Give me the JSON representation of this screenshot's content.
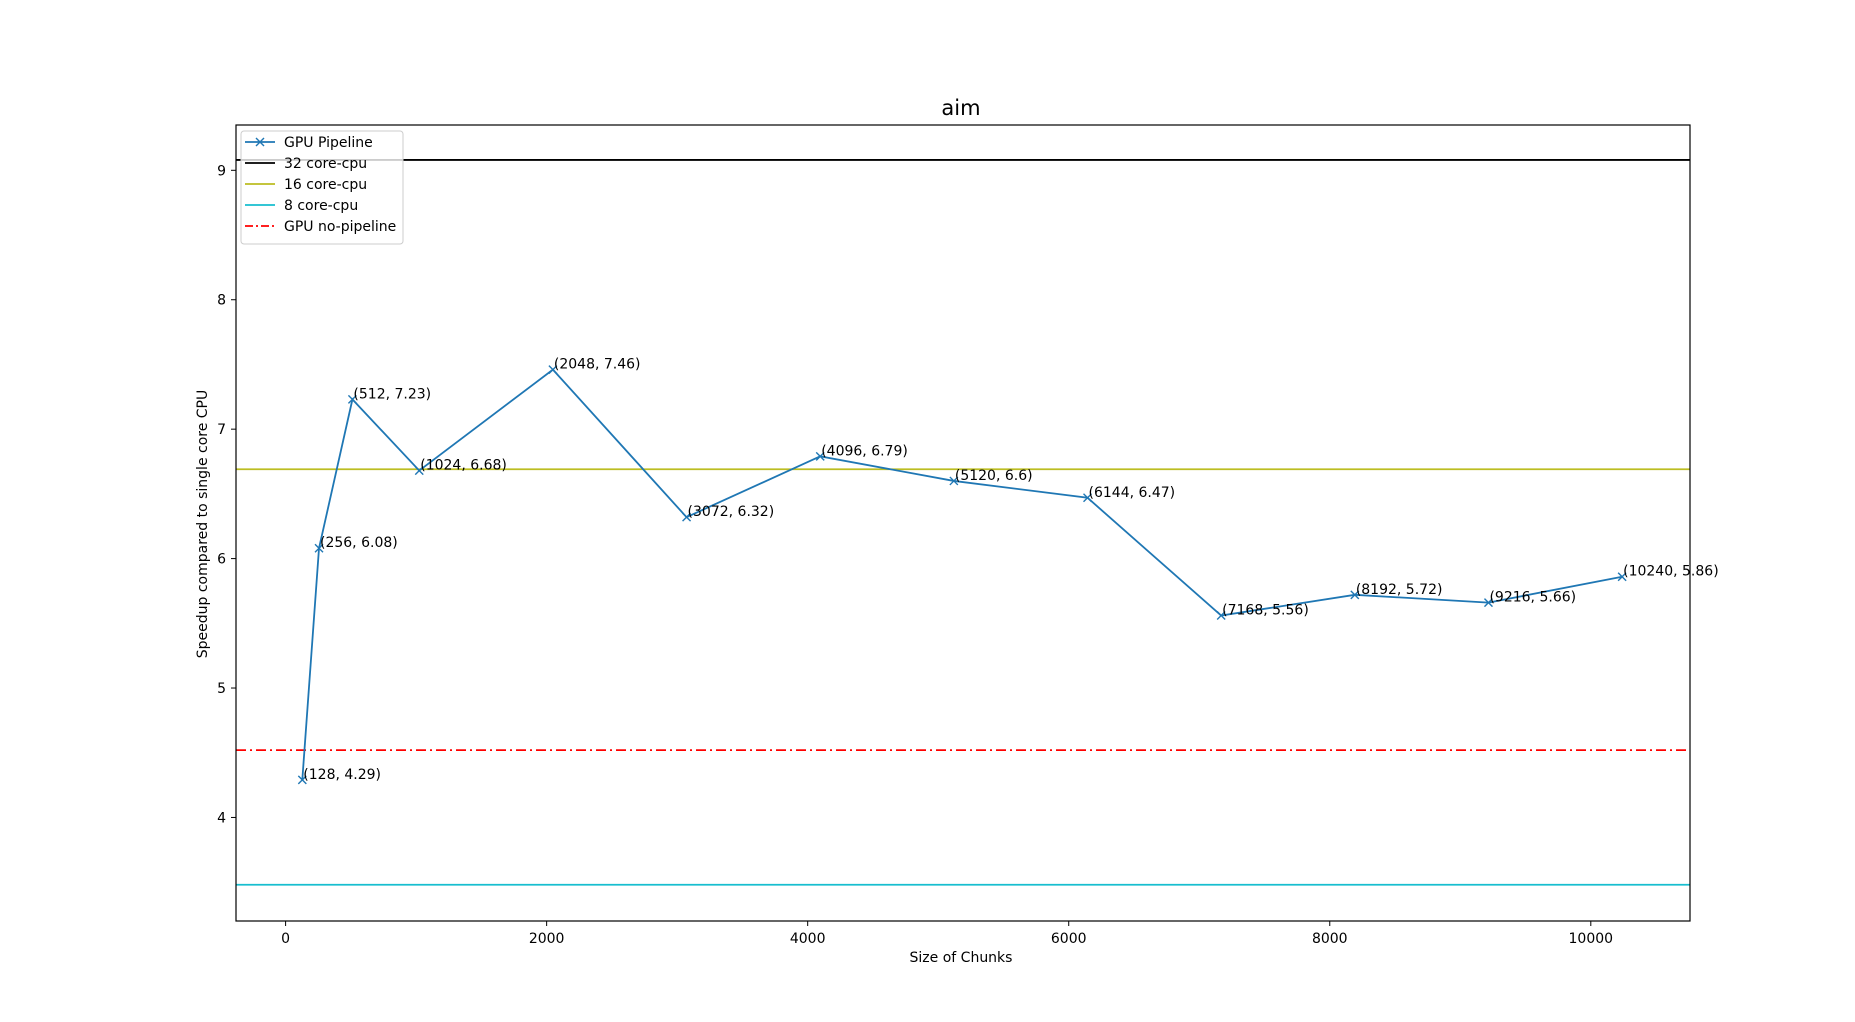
{
  "chart_data": {
    "type": "line",
    "title": "aim",
    "xlabel": "Size of Chunks",
    "ylabel": "Speedup compared to single core CPU",
    "xlim": [
      -380,
      10760
    ],
    "ylim": [
      3.2,
      9.35
    ],
    "xticks": [
      0,
      2000,
      4000,
      6000,
      8000,
      10000
    ],
    "yticks": [
      4,
      5,
      6,
      7,
      8,
      9
    ],
    "grid": false,
    "legend_position": "upper-left",
    "series": [
      {
        "name": "GPU Pipeline",
        "color": "#1f77b4",
        "marker": "x",
        "x": [
          128,
          256,
          512,
          1024,
          2048,
          3072,
          4096,
          5120,
          6144,
          7168,
          8192,
          9216,
          10240
        ],
        "y": [
          4.29,
          6.08,
          7.23,
          6.68,
          7.46,
          6.32,
          6.79,
          6.6,
          6.47,
          5.56,
          5.72,
          5.66,
          5.86
        ],
        "point_labels": [
          "(128, 4.29)",
          "(256, 6.08)",
          "(512, 7.23)",
          "(1024, 6.68)",
          "(2048, 7.46)",
          "(3072, 6.32)",
          "(4096, 6.79)",
          "(5120, 6.6)",
          "(6144, 6.47)",
          "(7168, 5.56)",
          "(8192, 5.72)",
          "(9216, 5.66)",
          "(10240, 5.86)"
        ]
      }
    ],
    "reference_lines": [
      {
        "name": "32 core-cpu",
        "value": 9.08,
        "color": "#000000",
        "style": "solid"
      },
      {
        "name": "16 core-cpu",
        "value": 6.69,
        "color": "#bcbd22",
        "style": "solid"
      },
      {
        "name": "8 core-cpu",
        "value": 3.48,
        "color": "#17becf",
        "style": "solid"
      },
      {
        "name": "GPU no-pipeline",
        "value": 4.52,
        "color": "#ff0000",
        "style": "dashdot"
      }
    ]
  }
}
